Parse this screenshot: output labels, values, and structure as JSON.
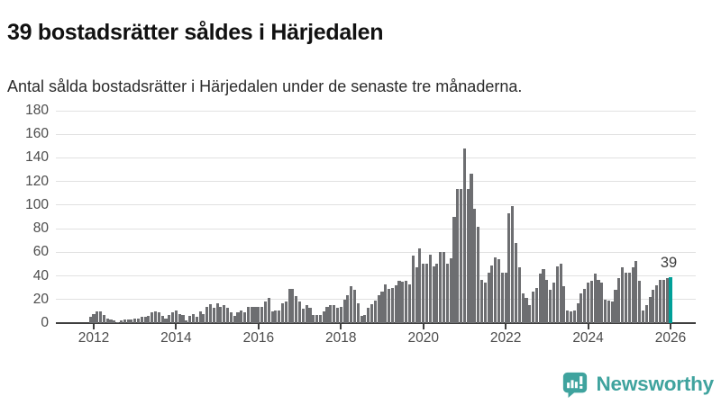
{
  "header": {
    "title": "39 bostadsrätter såldes i Härjedalen",
    "subtitle": "Antal sålda bostadsrätter i Härjedalen under de senaste tre månaderna."
  },
  "chart_data": {
    "type": "bar",
    "title": "39 bostadsrätter såldes i Härjedalen",
    "xlabel": "",
    "ylabel": "",
    "x_start": "2011-12",
    "x_end": "2026-01",
    "x_frequency": "monthly",
    "ylim": [
      0,
      180
    ],
    "yticks": [
      0,
      20,
      40,
      60,
      80,
      100,
      120,
      140,
      160,
      180
    ],
    "xticks": [
      2012,
      2014,
      2016,
      2018,
      2020,
      2022,
      2024,
      2026
    ],
    "grid": true,
    "values": [
      5,
      8,
      10,
      10,
      7,
      4,
      3,
      2,
      1,
      2,
      3,
      3,
      3,
      4,
      4,
      5,
      5,
      6,
      9,
      10,
      9,
      6,
      4,
      7,
      9,
      11,
      8,
      7,
      2,
      6,
      8,
      5,
      10,
      8,
      14,
      16,
      13,
      17,
      14,
      15,
      13,
      9,
      6,
      9,
      11,
      9,
      14,
      14,
      14,
      14,
      14,
      18,
      21,
      10,
      11,
      11,
      17,
      18,
      29,
      29,
      23,
      18,
      12,
      15,
      13,
      7,
      7,
      7,
      10,
      14,
      15,
      15,
      13,
      14,
      20,
      24,
      31,
      28,
      17,
      6,
      7,
      13,
      16,
      19,
      24,
      27,
      33,
      29,
      30,
      32,
      36,
      35,
      36,
      33,
      57,
      47,
      63,
      50,
      50,
      58,
      48,
      50,
      60,
      60,
      50,
      55,
      90,
      114,
      114,
      148,
      114,
      127,
      97,
      82,
      37,
      34,
      43,
      49,
      56,
      54,
      43,
      43,
      93,
      99,
      68,
      47,
      25,
      21,
      15,
      27,
      30,
      42,
      46,
      37,
      28,
      34,
      48,
      50,
      31,
      11,
      10,
      11,
      17,
      25,
      29,
      34,
      36,
      42,
      37,
      34,
      20,
      19,
      18,
      28,
      38,
      47,
      43,
      43,
      47,
      53,
      36,
      11,
      15,
      22,
      28,
      32,
      37,
      37,
      38,
      39
    ],
    "highlight_last": true,
    "annotation": {
      "text": "39"
    },
    "colors": {
      "bar": "#6d6e71",
      "highlight": "#00a099",
      "gridline": "#e1e1e1",
      "axis": "#3f3f3f",
      "axis_text": "#4c4c4c"
    }
  },
  "footer": {
    "brand": "Newsworthy",
    "brand_color": "#3fa39e"
  }
}
